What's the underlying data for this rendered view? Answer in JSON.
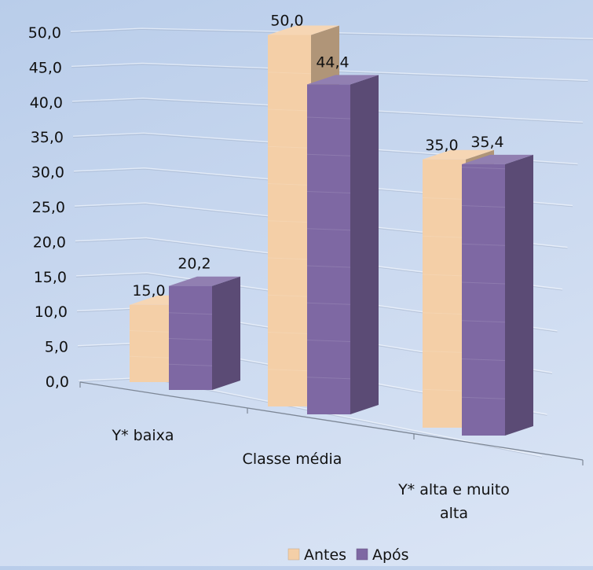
{
  "chart_data": {
    "type": "bar",
    "variant": "3d-clustered-column",
    "categories": [
      "Y* baixa",
      "Classe média",
      "Y* alta e muito alta"
    ],
    "series": [
      {
        "name": "Antes",
        "values": [
          15.0,
          50.0,
          35.0
        ],
        "color": "#f4cfa7"
      },
      {
        "name": "Após",
        "values": [
          20.2,
          44.4,
          35.4
        ],
        "color": "#7e68a3"
      }
    ],
    "data_labels": [
      [
        "15,0",
        "50,0",
        "35,0"
      ],
      [
        "20,2",
        "44,4",
        "35,4"
      ]
    ],
    "y_ticks": [
      "0,0",
      "5,0",
      "10,0",
      "15,0",
      "20,0",
      "25,0",
      "30,0",
      "35,0",
      "40,0",
      "45,0",
      "50,0"
    ],
    "ylim": [
      0,
      50
    ],
    "grid": true,
    "legend_position": "bottom",
    "background": "#c5d5ee"
  }
}
